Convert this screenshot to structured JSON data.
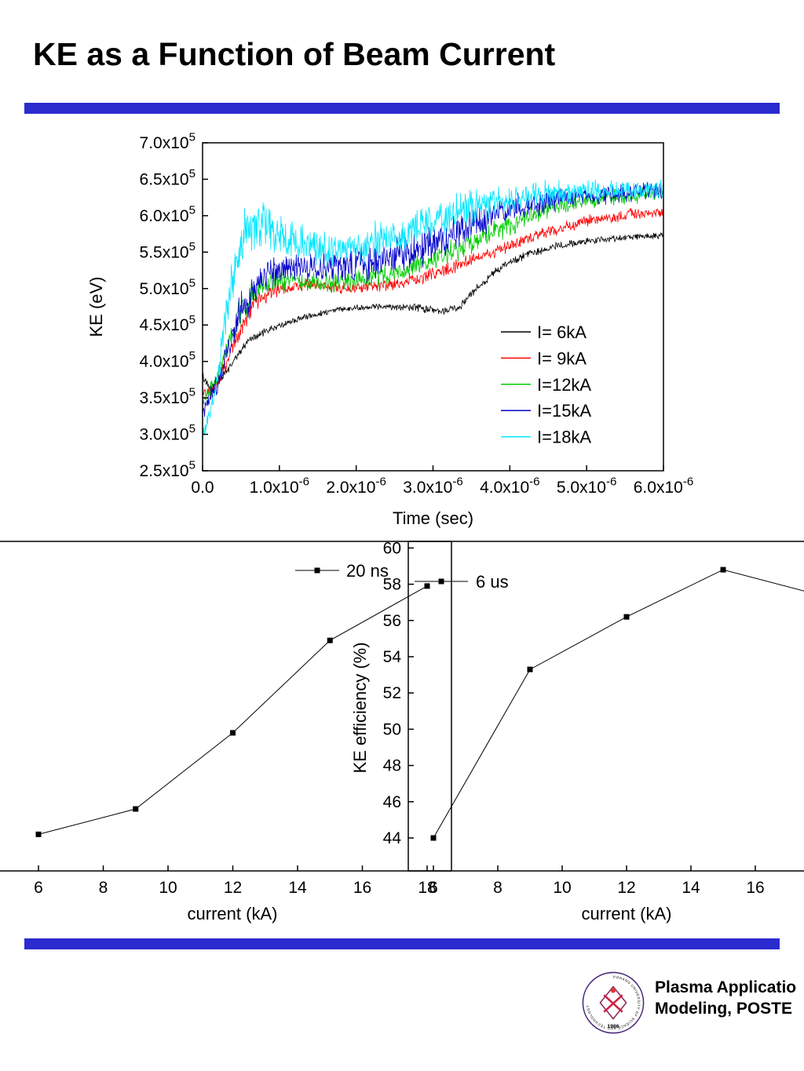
{
  "slide": {
    "title": "KE as a Function of Beam Current",
    "accent_color": "#2b2bcf",
    "footer": {
      "line1": "Plasma Applicatio",
      "line2": "Modeling, POSTE",
      "seal_year": "1986",
      "seal_ring_text": "POHANG UNIVERSITY OF SCIENCE AND TECHNOLOGY"
    }
  },
  "chart_data": [
    {
      "id": "ke-vs-time",
      "type": "line",
      "title": "",
      "xlabel": "Time (sec)",
      "ylabel": "KE (eV)",
      "xlim": [
        0,
        6
      ],
      "x_unit": "x10^-6 sec",
      "ylim": [
        2.5,
        7.0
      ],
      "y_unit": "x10^5 eV",
      "grid": false,
      "legend_position": "inside-right-lower",
      "x_ticks": [
        {
          "v": 0,
          "label": "0.0"
        },
        {
          "v": 1,
          "label": "1.0x10^-6"
        },
        {
          "v": 2,
          "label": "2.0x10^-6"
        },
        {
          "v": 3,
          "label": "3.0x10^-6"
        },
        {
          "v": 4,
          "label": "4.0x10^-6"
        },
        {
          "v": 5,
          "label": "5.0x10^-6"
        },
        {
          "v": 6,
          "label": "6.0x10^-6"
        }
      ],
      "y_ticks": [
        {
          "v": 7.0,
          "label": "7.0x10^5"
        },
        {
          "v": 6.5,
          "label": "6.5x10^5"
        },
        {
          "v": 6.0,
          "label": "6.0x10^5"
        },
        {
          "v": 5.5,
          "label": "5.5x10^5"
        },
        {
          "v": 5.0,
          "label": "5.0x10^5"
        },
        {
          "v": 4.5,
          "label": "4.5x10^5"
        },
        {
          "v": 4.0,
          "label": "4.0x10^5"
        },
        {
          "v": 3.5,
          "label": "3.5x10^5"
        },
        {
          "v": 3.0,
          "label": "3.0x10^5"
        },
        {
          "v": 2.5,
          "label": "2.5x10^5"
        }
      ],
      "series": [
        {
          "name": "I= 6kA",
          "color": "#000000",
          "keypoints": [
            [
              0,
              3.8
            ],
            [
              0.1,
              3.6
            ],
            [
              0.3,
              3.85
            ],
            [
              0.6,
              4.3
            ],
            [
              0.9,
              4.45
            ],
            [
              1.3,
              4.6
            ],
            [
              1.8,
              4.72
            ],
            [
              2.3,
              4.76
            ],
            [
              2.8,
              4.74
            ],
            [
              3.1,
              4.68
            ],
            [
              3.35,
              4.75
            ],
            [
              3.6,
              5.05
            ],
            [
              3.9,
              5.3
            ],
            [
              4.2,
              5.45
            ],
            [
              4.6,
              5.58
            ],
            [
              5.0,
              5.65
            ],
            [
              5.5,
              5.7
            ],
            [
              6.0,
              5.73
            ]
          ],
          "noise": [
            [
              0,
              0.07
            ],
            [
              0.5,
              0.06
            ],
            [
              2,
              0.05
            ],
            [
              3.5,
              0.07
            ],
            [
              6,
              0.05
            ]
          ]
        },
        {
          "name": "I= 9kA",
          "color": "#ff0000",
          "keypoints": [
            [
              0,
              3.55
            ],
            [
              0.15,
              3.6
            ],
            [
              0.4,
              4.2
            ],
            [
              0.7,
              4.85
            ],
            [
              1.0,
              5.0
            ],
            [
              1.4,
              5.05
            ],
            [
              1.9,
              5.0
            ],
            [
              2.4,
              5.05
            ],
            [
              2.9,
              5.15
            ],
            [
              3.4,
              5.35
            ],
            [
              3.9,
              5.55
            ],
            [
              4.4,
              5.75
            ],
            [
              4.9,
              5.9
            ],
            [
              5.4,
              6.0
            ],
            [
              6.0,
              6.05
            ]
          ],
          "noise": [
            [
              0,
              0.1
            ],
            [
              0.4,
              0.18
            ],
            [
              1,
              0.12
            ],
            [
              2,
              0.1
            ],
            [
              3,
              0.12
            ],
            [
              4.5,
              0.1
            ],
            [
              6,
              0.09
            ]
          ]
        },
        {
          "name": "I=12kA",
          "color": "#00cc00",
          "keypoints": [
            [
              0,
              3.4
            ],
            [
              0.2,
              3.8
            ],
            [
              0.45,
              4.6
            ],
            [
              0.7,
              5.0
            ],
            [
              1.0,
              5.1
            ],
            [
              1.5,
              5.08
            ],
            [
              2.0,
              5.12
            ],
            [
              2.5,
              5.2
            ],
            [
              3.0,
              5.4
            ],
            [
              3.5,
              5.62
            ],
            [
              4.0,
              5.88
            ],
            [
              4.5,
              6.1
            ],
            [
              5.0,
              6.2
            ],
            [
              5.5,
              6.27
            ],
            [
              6.0,
              6.3
            ]
          ],
          "noise": [
            [
              0,
              0.1
            ],
            [
              0.5,
              0.22
            ],
            [
              1.2,
              0.15
            ],
            [
              2.5,
              0.18
            ],
            [
              3.5,
              0.2
            ],
            [
              4.5,
              0.15
            ],
            [
              6,
              0.12
            ]
          ]
        },
        {
          "name": "I=15kA",
          "color": "#0000cc",
          "keypoints": [
            [
              0,
              3.3
            ],
            [
              0.2,
              3.7
            ],
            [
              0.5,
              4.7
            ],
            [
              0.8,
              5.15
            ],
            [
              1.1,
              5.3
            ],
            [
              1.6,
              5.28
            ],
            [
              2.1,
              5.32
            ],
            [
              2.6,
              5.45
            ],
            [
              3.1,
              5.65
            ],
            [
              3.6,
              5.92
            ],
            [
              4.0,
              6.1
            ],
            [
              4.5,
              6.22
            ],
            [
              5.0,
              6.28
            ],
            [
              5.5,
              6.32
            ],
            [
              6.0,
              6.33
            ]
          ],
          "noise": [
            [
              0,
              0.12
            ],
            [
              0.5,
              0.3
            ],
            [
              1.2,
              0.22
            ],
            [
              2.2,
              0.28
            ],
            [
              3.2,
              0.33
            ],
            [
              4.2,
              0.22
            ],
            [
              5,
              0.17
            ],
            [
              6,
              0.15
            ]
          ]
        },
        {
          "name": "I=18kA",
          "color": "#00e6ff",
          "keypoints": [
            [
              0,
              2.95
            ],
            [
              0.15,
              3.5
            ],
            [
              0.35,
              4.9
            ],
            [
              0.55,
              5.75
            ],
            [
              0.8,
              5.9
            ],
            [
              1.0,
              5.75
            ],
            [
              1.3,
              5.6
            ],
            [
              1.7,
              5.52
            ],
            [
              2.1,
              5.58
            ],
            [
              2.6,
              5.75
            ],
            [
              3.0,
              5.95
            ],
            [
              3.4,
              6.1
            ],
            [
              3.8,
              6.2
            ],
            [
              4.3,
              6.28
            ],
            [
              4.8,
              6.32
            ],
            [
              5.4,
              6.35
            ],
            [
              6.0,
              6.35
            ]
          ],
          "noise": [
            [
              0,
              0.15
            ],
            [
              0.35,
              0.4
            ],
            [
              0.7,
              0.45
            ],
            [
              1.1,
              0.32
            ],
            [
              1.8,
              0.3
            ],
            [
              2.6,
              0.33
            ],
            [
              3.4,
              0.3
            ],
            [
              4.2,
              0.22
            ],
            [
              5,
              0.18
            ],
            [
              6,
              0.15
            ]
          ]
        }
      ]
    },
    {
      "id": "ke-efficiency-20ns",
      "type": "line",
      "legend_label": "20 ns",
      "marker": "square",
      "line_color": "#000000",
      "xlabel": "current (kA)",
      "ylabel": "",
      "y_axis_labels_visible": false,
      "x_ticks": [
        6,
        8,
        10,
        12,
        14,
        16,
        18
      ],
      "points": [
        [
          6,
          44.2
        ],
        [
          9,
          45.6
        ],
        [
          12,
          49.8
        ],
        [
          15,
          54.9
        ],
        [
          18,
          57.9
        ]
      ]
    },
    {
      "id": "ke-efficiency-6us",
      "type": "line",
      "legend_label": "6 us",
      "marker": "square",
      "line_color": "#000000",
      "xlabel": "current (kA)",
      "ylabel": "KE efficiency (%)",
      "ylim": [
        42.2,
        60.4
      ],
      "x_ticks": [
        6,
        8,
        10,
        12,
        14,
        16
      ],
      "y_ticks": [
        44,
        46,
        48,
        50,
        52,
        54,
        56,
        58,
        60
      ],
      "points": [
        [
          6,
          44.0
        ],
        [
          9,
          53.3
        ],
        [
          12,
          56.2
        ],
        [
          15,
          58.8
        ],
        [
          18,
          57.4
        ]
      ]
    }
  ]
}
